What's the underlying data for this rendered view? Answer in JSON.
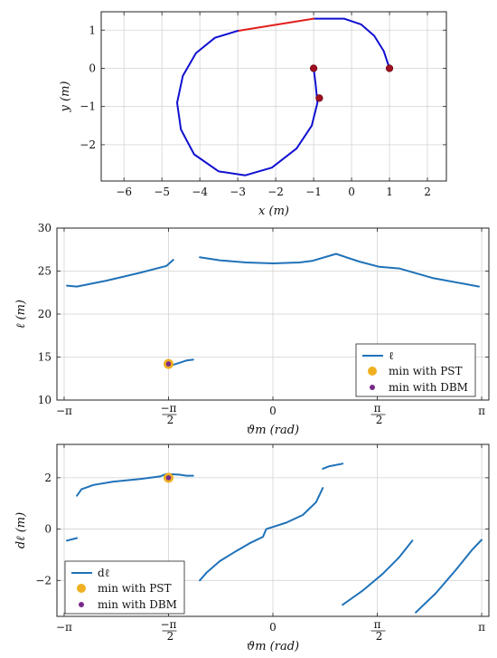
{
  "colors": {
    "trajectory": "#1010d0",
    "segment": "#e0201c",
    "marker": "#a01020",
    "series": "#1f72b8",
    "pst": "#f0b020",
    "dbm": "#7a2a8a"
  },
  "chart_data": [
    {
      "type": "line",
      "xlabel": "x (m)",
      "ylabel": "y (m)",
      "xlim": [
        -6.6,
        2.5
      ],
      "ylim": [
        -2.95,
        1.48
      ],
      "grid": true,
      "xticks": [
        -6,
        -5,
        -4,
        -3,
        -2,
        -1,
        0,
        1,
        2
      ],
      "xtick_labels": [
        "−6",
        "−5",
        "−4",
        "−3",
        "−2",
        "−1",
        "0",
        "1",
        "2"
      ],
      "yticks": [
        1,
        0,
        -1,
        -2
      ],
      "ytick_labels": [
        "1",
        "0",
        "−1",
        "−2"
      ],
      "series": [
        {
          "role": "blue-path",
          "points": [
            [
              1.0,
              0.0
            ],
            [
              0.85,
              0.45
            ],
            [
              0.6,
              0.85
            ],
            [
              0.25,
              1.15
            ],
            [
              -0.2,
              1.3
            ],
            [
              -1.0,
              1.3
            ]
          ]
        },
        {
          "role": "red-segment",
          "points": [
            [
              -1.0,
              1.3
            ],
            [
              -3.0,
              0.98
            ]
          ]
        },
        {
          "role": "blue-path",
          "points": [
            [
              -3.0,
              0.98
            ],
            [
              -3.6,
              0.8
            ],
            [
              -4.1,
              0.4
            ],
            [
              -4.45,
              -0.2
            ],
            [
              -4.6,
              -0.9
            ],
            [
              -4.5,
              -1.6
            ],
            [
              -4.15,
              -2.25
            ],
            [
              -3.5,
              -2.7
            ],
            [
              -2.8,
              -2.8
            ],
            [
              -2.1,
              -2.6
            ],
            [
              -1.45,
              -2.1
            ],
            [
              -1.05,
              -1.5
            ],
            [
              -0.9,
              -0.9
            ],
            [
              -0.95,
              -0.4
            ],
            [
              -1.0,
              0.0
            ]
          ]
        }
      ],
      "markers": [
        [
          1.0,
          0.0
        ],
        [
          -1.0,
          0.0
        ],
        [
          -0.85,
          -0.78
        ]
      ]
    },
    {
      "type": "line",
      "xlabel": "ϑm (rad)",
      "ylabel": "ℓ (m)",
      "xlim": [
        -3.25,
        3.25
      ],
      "ylim": [
        10,
        30
      ],
      "grid": true,
      "xticks": [
        -3.14159,
        -1.5708,
        0,
        1.5708,
        3.14159
      ],
      "xtick_labels": [
        "−π",
        "−π/2",
        "0",
        "π/2",
        "π"
      ],
      "yticks": [
        10,
        15,
        20,
        25,
        30
      ],
      "ytick_labels": [
        "10",
        "15",
        "20",
        "25",
        "30"
      ],
      "series": [
        {
          "name": "ℓ",
          "segments": [
            [
              [
                -3.1,
                23.3
              ],
              [
                -2.95,
                23.2
              ],
              [
                -2.5,
                23.9
              ],
              [
                -2.0,
                24.8
              ],
              [
                -1.6,
                25.6
              ],
              [
                -1.5,
                26.3
              ]
            ],
            [
              [
                -1.5,
                14.1
              ],
              [
                -1.3,
                14.6
              ],
              [
                -1.2,
                14.7
              ]
            ],
            [
              [
                -1.1,
                26.6
              ],
              [
                -0.8,
                26.25
              ],
              [
                -0.4,
                26.0
              ],
              [
                0.0,
                25.9
              ],
              [
                0.4,
                26.0
              ],
              [
                0.6,
                26.2
              ],
              [
                0.95,
                27.0
              ],
              [
                1.3,
                26.1
              ],
              [
                1.6,
                25.5
              ],
              [
                1.9,
                25.3
              ],
              [
                2.4,
                24.2
              ],
              [
                3.1,
                23.2
              ]
            ]
          ]
        }
      ],
      "legend": {
        "position": "lower-right",
        "entries": [
          "ℓ",
          "min with PST",
          "min with DBM"
        ]
      },
      "points": {
        "pst": [
          -1.5708,
          14.2
        ],
        "dbm": [
          -1.5708,
          14.2
        ]
      }
    },
    {
      "type": "line",
      "xlabel": "ϑm (rad)",
      "ylabel": "dℓ (m)",
      "xlim": [
        -3.25,
        3.25
      ],
      "ylim": [
        -3.4,
        3.3
      ],
      "grid": true,
      "xticks": [
        -3.14159,
        -1.5708,
        0,
        1.5708,
        3.14159
      ],
      "xtick_labels": [
        "−π",
        "−π/2",
        "0",
        "π/2",
        "π"
      ],
      "yticks": [
        -2,
        0,
        2
      ],
      "ytick_labels": [
        "−2",
        "0",
        "2"
      ],
      "series": [
        {
          "name": "dℓ",
          "segments": [
            [
              [
                -3.1,
                -0.45
              ],
              [
                -2.95,
                -0.35
              ]
            ],
            [
              [
                -2.95,
                1.3
              ],
              [
                -2.88,
                1.55
              ],
              [
                -2.7,
                1.72
              ],
              [
                -2.4,
                1.85
              ],
              [
                -2.0,
                1.95
              ],
              [
                -1.7,
                2.05
              ],
              [
                -1.6,
                2.15
              ],
              [
                -1.4,
                2.12
              ],
              [
                -1.3,
                2.08
              ],
              [
                -1.2,
                2.08
              ]
            ],
            [
              [
                -1.1,
                -2.0
              ],
              [
                -1.0,
                -1.7
              ],
              [
                -0.8,
                -1.25
              ],
              [
                -0.55,
                -0.85
              ],
              [
                -0.35,
                -0.55
              ],
              [
                -0.15,
                -0.3
              ],
              [
                -0.1,
                0.0
              ],
              [
                0.2,
                0.25
              ],
              [
                0.45,
                0.55
              ],
              [
                0.65,
                1.05
              ],
              [
                0.75,
                1.6
              ]
            ],
            [
              [
                0.75,
                2.35
              ],
              [
                0.85,
                2.45
              ],
              [
                1.05,
                2.55
              ]
            ],
            [
              [
                1.05,
                -2.95
              ],
              [
                1.35,
                -2.4
              ],
              [
                1.65,
                -1.75
              ],
              [
                1.9,
                -1.1
              ],
              [
                2.1,
                -0.45
              ]
            ],
            [
              [
                2.15,
                -3.25
              ],
              [
                2.45,
                -2.5
              ],
              [
                2.75,
                -1.6
              ],
              [
                3.0,
                -0.8
              ],
              [
                3.14,
                -0.42
              ]
            ]
          ]
        }
      ],
      "legend": {
        "position": "lower-left",
        "entries": [
          "dℓ",
          "min with PST",
          "min with DBM"
        ]
      },
      "points": {
        "pst": [
          -1.5708,
          2.0
        ],
        "dbm": [
          -1.5708,
          2.0
        ]
      }
    }
  ]
}
